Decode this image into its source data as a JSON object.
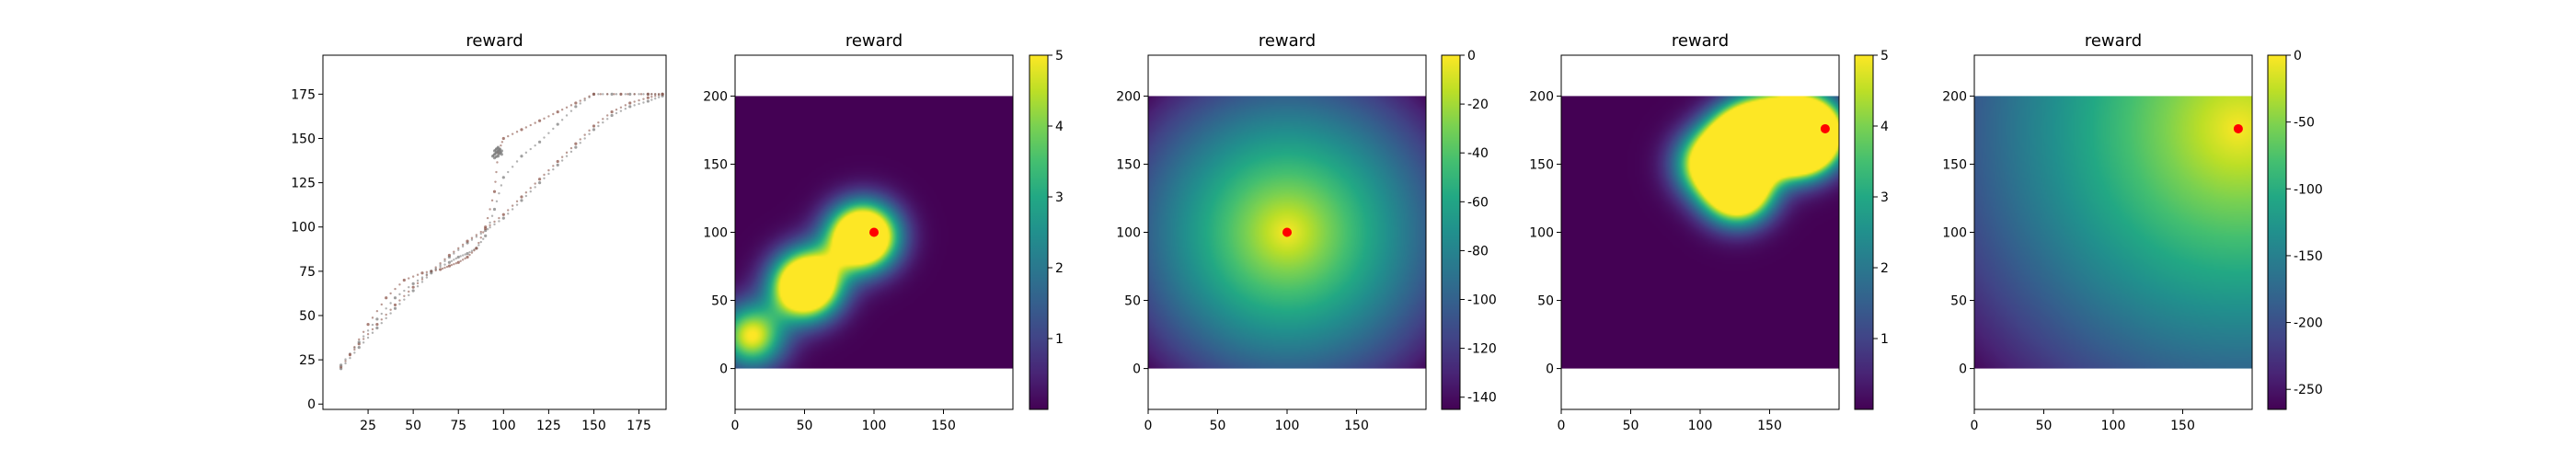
{
  "chart_data": [
    {
      "type": "scatter",
      "title": "reward",
      "xlim": [
        0,
        190
      ],
      "ylim": [
        -3,
        197
      ],
      "xticks": [
        25,
        50,
        75,
        100,
        125,
        150,
        175
      ],
      "yticks": [
        0,
        25,
        50,
        75,
        100,
        125,
        150,
        175
      ],
      "grid": false,
      "colors": [
        "#7f7f7f",
        "#8c564b"
      ],
      "series": [
        {
          "x": [
            10,
            20,
            30,
            40,
            50,
            60,
            70,
            80,
            90,
            100,
            110,
            120,
            130,
            140,
            150,
            160,
            170,
            180,
            188
          ],
          "y": [
            20,
            32,
            43,
            54,
            64,
            74,
            83,
            91,
            98,
            105,
            115,
            125,
            135,
            145,
            155,
            163,
            168,
            171,
            174
          ]
        },
        {
          "x": [
            10,
            20,
            30,
            40,
            50,
            60,
            70,
            80,
            90,
            100,
            110,
            120,
            130,
            140,
            150,
            160,
            170,
            180,
            188
          ],
          "y": [
            21,
            34,
            45,
            56,
            66,
            75,
            84,
            92,
            99,
            107,
            117,
            127,
            137,
            147,
            157,
            165,
            170,
            173,
            175
          ]
        },
        {
          "x": [
            10,
            20,
            30,
            40,
            50,
            60,
            70,
            75,
            80,
            85,
            90,
            95,
            100,
            110,
            120,
            130,
            140,
            150,
            160,
            170,
            180,
            188
          ],
          "y": [
            22,
            35,
            48,
            60,
            68,
            75,
            80,
            83,
            85,
            88,
            95,
            110,
            128,
            140,
            148,
            158,
            168,
            175,
            175,
            175,
            175,
            175
          ]
        },
        {
          "x": [
            15,
            25,
            35,
            45,
            55,
            65,
            70,
            75,
            80,
            85,
            90,
            95,
            97,
            100,
            110,
            120,
            130,
            140,
            150,
            165,
            180,
            188
          ],
          "y": [
            28,
            45,
            60,
            70,
            74,
            76,
            78,
            80,
            83,
            88,
            100,
            120,
            142,
            150,
            155,
            160,
            165,
            170,
            175,
            175,
            175,
            175
          ]
        },
        {
          "x": [
            94,
            95,
            96,
            97,
            98,
            99,
            95,
            96,
            97,
            98,
            95,
            97,
            99
          ],
          "y": [
            140,
            141,
            142,
            143,
            144,
            141,
            143,
            144,
            145,
            142,
            139,
            140,
            143
          ]
        }
      ]
    },
    {
      "type": "heatmap",
      "title": "reward",
      "extent": [
        0,
        200,
        0,
        200
      ],
      "xlim": [
        0,
        200
      ],
      "ylim": [
        -30,
        230
      ],
      "xticks": [
        0,
        50,
        100,
        150
      ],
      "yticks": [
        0,
        50,
        100,
        150,
        200
      ],
      "colorbar": {
        "vmin": 0,
        "vmax": 5,
        "ticks": [
          1,
          2,
          3,
          4,
          5
        ]
      },
      "colormap": "viridis",
      "field": "gaussian_sum",
      "sigma": 16,
      "amplitude": 5,
      "peaks": [
        [
          12,
          24
        ],
        [
          48,
          58
        ],
        [
          55,
          65
        ],
        [
          88,
          95
        ],
        [
          95,
          98
        ]
      ],
      "marker": {
        "x": 100,
        "y": 100,
        "color": "#ff0000"
      }
    },
    {
      "type": "heatmap",
      "title": "reward",
      "extent": [
        0,
        200,
        0,
        200
      ],
      "xlim": [
        0,
        200
      ],
      "ylim": [
        -30,
        230
      ],
      "xticks": [
        0,
        50,
        100,
        150
      ],
      "yticks": [
        0,
        50,
        100,
        150,
        200
      ],
      "colorbar": {
        "vmin": -145,
        "vmax": 0,
        "ticks": [
          0,
          -20,
          -40,
          -60,
          -80,
          -100,
          -120,
          -140
        ]
      },
      "colormap": "viridis",
      "field": "negative_distance",
      "center": [
        100,
        100
      ],
      "marker": {
        "x": 100,
        "y": 100,
        "color": "#ff0000"
      }
    },
    {
      "type": "heatmap",
      "title": "reward",
      "extent": [
        0,
        200,
        0,
        200
      ],
      "xlim": [
        0,
        200
      ],
      "ylim": [
        -30,
        230
      ],
      "xticks": [
        0,
        50,
        100,
        150
      ],
      "yticks": [
        0,
        50,
        100,
        150,
        200
      ],
      "colorbar": {
        "vmin": 0,
        "vmax": 5,
        "ticks": [
          1,
          2,
          3,
          4,
          5
        ]
      },
      "colormap": "viridis",
      "field": "gaussian_sum",
      "sigma": 16,
      "amplitude": 5,
      "peaks": [
        [
          105,
          150
        ],
        [
          125,
          160
        ],
        [
          130,
          165
        ],
        [
          138,
          175
        ],
        [
          155,
          175
        ],
        [
          168,
          165
        ],
        [
          175,
          168
        ],
        [
          170,
          175
        ],
        [
          180,
          175
        ],
        [
          125,
          130
        ],
        [
          130,
          135
        ]
      ],
      "marker": {
        "x": 190,
        "y": 176,
        "color": "#ff0000"
      }
    },
    {
      "type": "heatmap",
      "title": "reward",
      "extent": [
        0,
        200,
        0,
        200
      ],
      "xlim": [
        0,
        200
      ],
      "ylim": [
        -30,
        230
      ],
      "xticks": [
        0,
        50,
        100,
        150
      ],
      "yticks": [
        0,
        50,
        100,
        150,
        200
      ],
      "colorbar": {
        "vmin": -265,
        "vmax": 0,
        "ticks": [
          0,
          -50,
          -100,
          -150,
          -200,
          -250
        ]
      },
      "colormap": "viridis",
      "field": "negative_distance",
      "center": [
        190,
        176
      ],
      "marker": {
        "x": 190,
        "y": 176,
        "color": "#ff0000"
      }
    }
  ]
}
